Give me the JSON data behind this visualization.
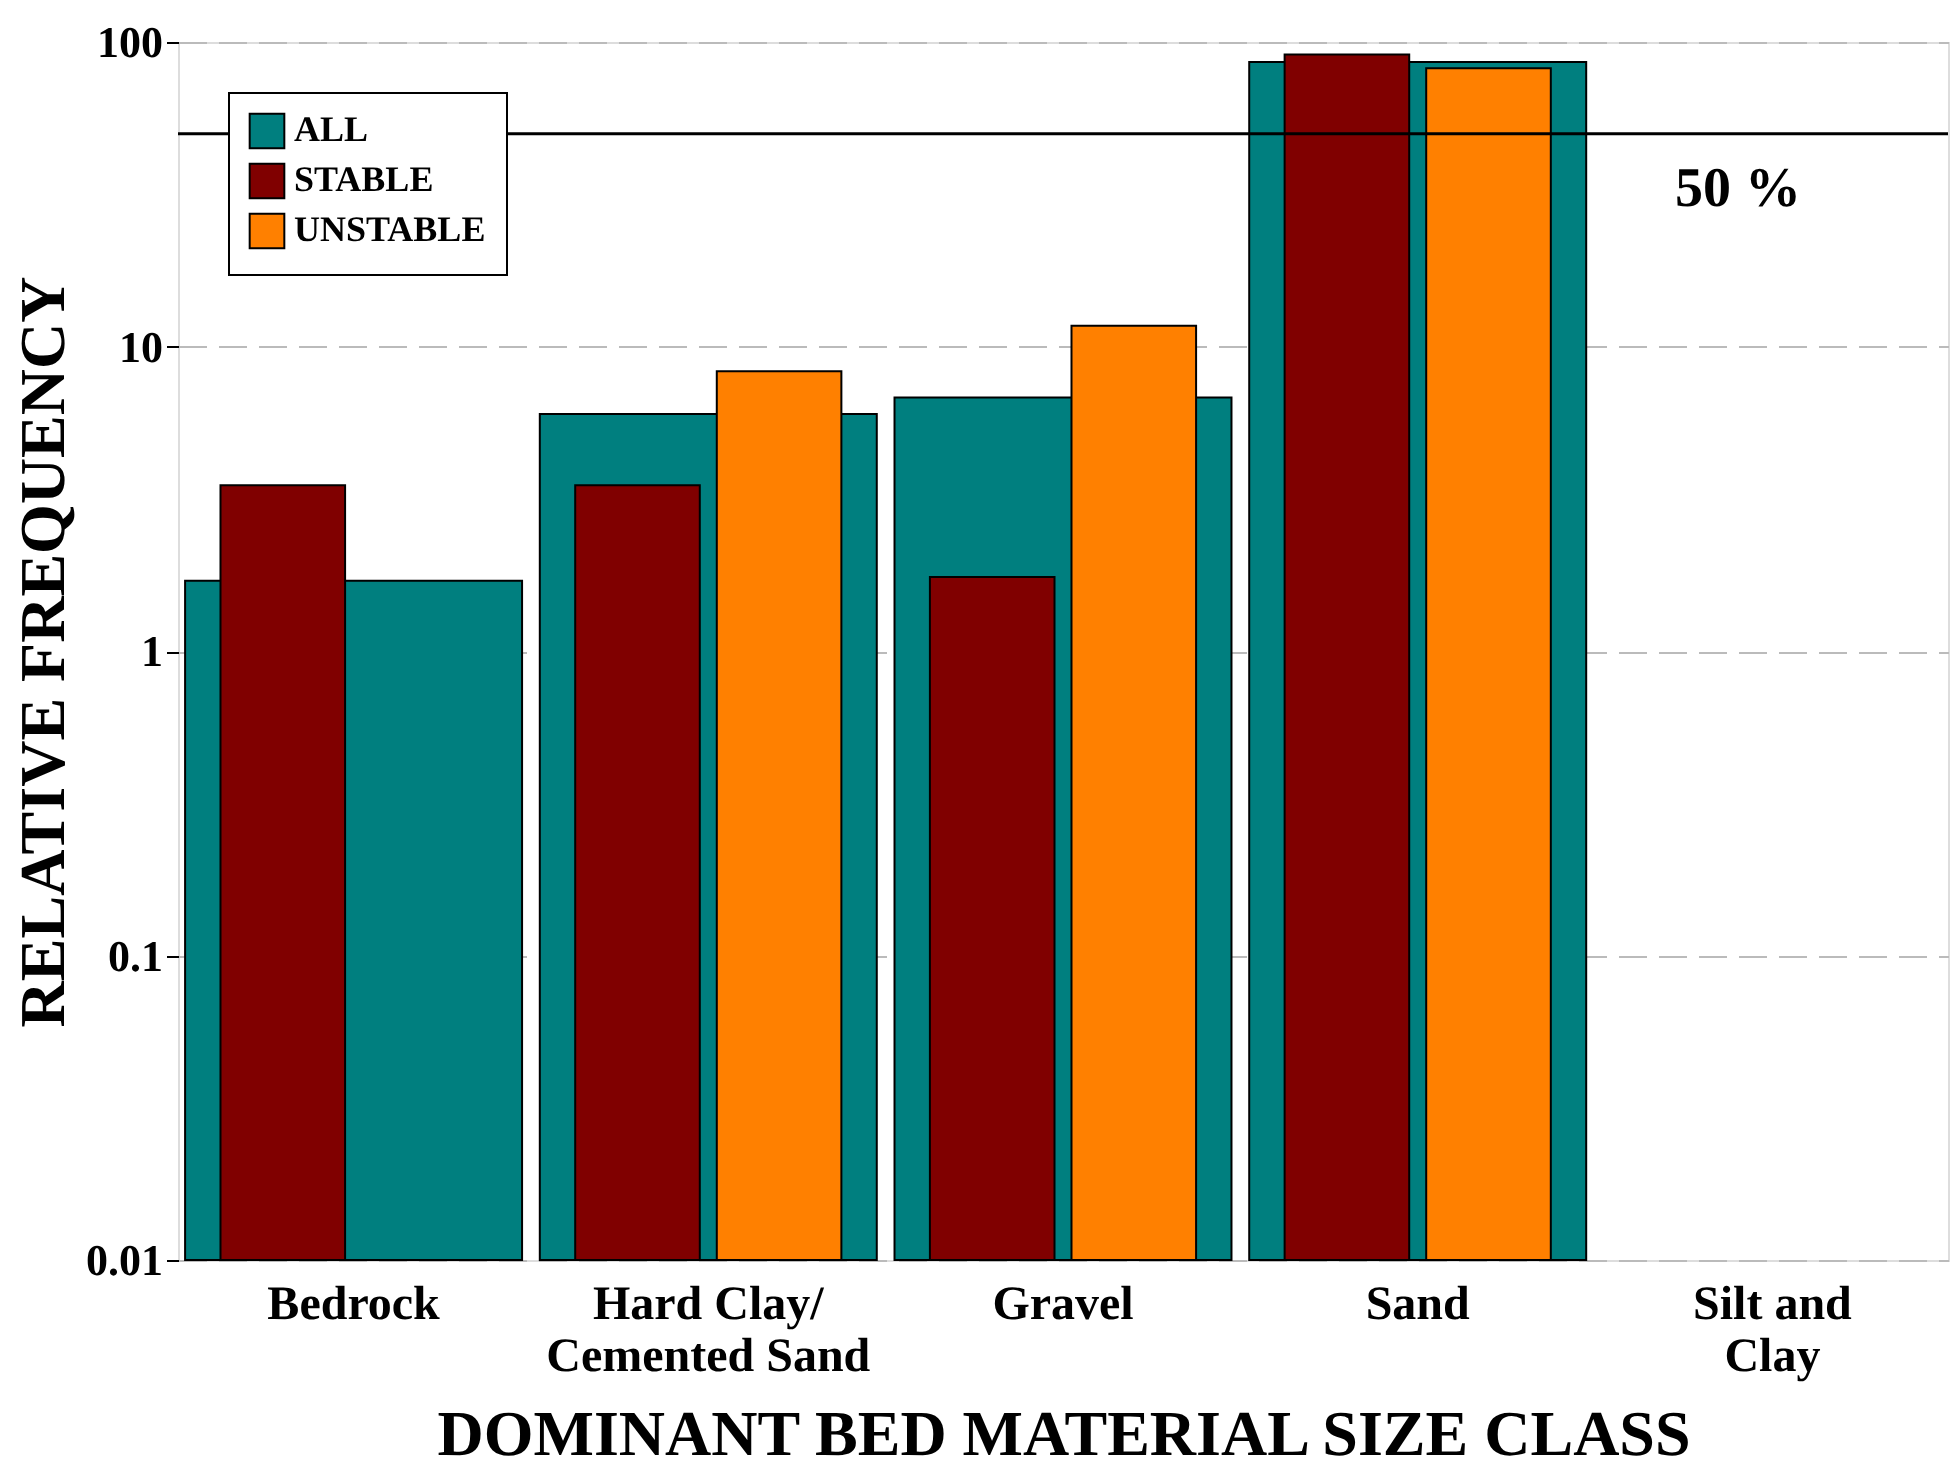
{
  "chart_data": {
    "type": "bar",
    "xlabel": "DOMINANT BED MATERIAL SIZE CLASS",
    "ylabel": "RELATIVE FREQUENCY",
    "categories": [
      "Bedrock",
      "Hard Clay/\nCemented Sand",
      "Gravel",
      "Sand",
      "Silt and\nClay"
    ],
    "series": [
      {
        "name": "ALL",
        "color": "#007f7f",
        "values": [
          1.7,
          6.0,
          6.8,
          86,
          null
        ]
      },
      {
        "name": "STABLE",
        "color": "#800000",
        "values": [
          3.5,
          3.5,
          1.75,
          91,
          null
        ]
      },
      {
        "name": "UNSTABLE",
        "color": "#ff8000",
        "values": [
          null,
          8.3,
          11.7,
          82,
          null
        ]
      }
    ],
    "log": true,
    "ylim": [
      0.01,
      100
    ],
    "yticks": [
      0.01,
      0.1,
      1,
      10,
      100
    ],
    "grid": "y",
    "legend": "top left",
    "ref_lines": [
      {
        "axis": "y",
        "value": 50,
        "label": "50 %",
        "color": "#000000",
        "line_style": "solid"
      }
    ]
  }
}
